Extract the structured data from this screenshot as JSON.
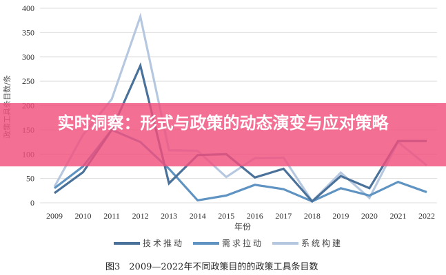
{
  "banner": {
    "title": "实时洞察：形式与政策的动态演变与应对策略",
    "color": "#f14f7c"
  },
  "chart_data": {
    "type": "line",
    "title": "图3　2009—2022年不同政策目的的政策工具条目数",
    "xlabel": "年份",
    "ylabel": "政策工具条目数/条",
    "ylim": [
      0,
      400
    ],
    "yticks": [
      0,
      50,
      100,
      150,
      200,
      250,
      300,
      350,
      400
    ],
    "grid": true,
    "legend_position": "bottom",
    "categories": [
      "2009",
      "2010",
      "2011",
      "2012",
      "2013",
      "2014",
      "2015",
      "2016",
      "2017",
      "2018",
      "2019",
      "2020",
      "2021",
      "2022"
    ],
    "series": [
      {
        "name": "技术推动",
        "color": "#4a7199",
        "values": [
          20,
          63,
          150,
          282,
          40,
          98,
          100,
          52,
          70,
          3,
          55,
          30,
          127,
          127
        ]
      },
      {
        "name": "需求拉动",
        "color": "#5e93c2",
        "values": [
          30,
          75,
          150,
          125,
          70,
          5,
          15,
          37,
          28,
          3,
          30,
          15,
          43,
          22
        ]
      },
      {
        "name": "系统构建",
        "color": "#b6c8e0",
        "values": [
          33,
          140,
          213,
          383,
          108,
          107,
          53,
          92,
          93,
          3,
          62,
          10,
          125,
          77
        ]
      }
    ]
  }
}
